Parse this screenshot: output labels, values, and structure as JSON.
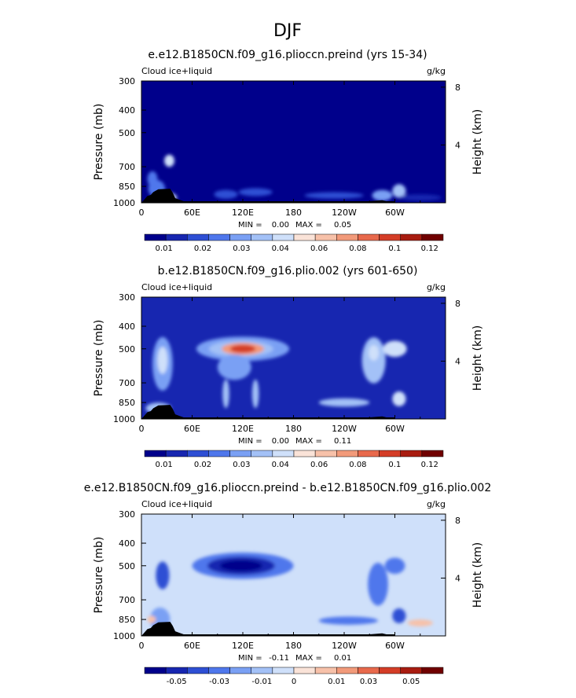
{
  "figure": {
    "title": "DJF"
  },
  "colors": {
    "levels": [
      "#00008b",
      "#1726b0",
      "#2e4fd4",
      "#4f77ec",
      "#7aa0f4",
      "#a3c1f7",
      "#cfe0fa",
      "#fae3d8",
      "#f7c1a9",
      "#f29a7a",
      "#e8694c",
      "#d43d27",
      "#a81c10",
      "#700000"
    ],
    "land": "#000000"
  },
  "chart_data": [
    {
      "type": "heatmap",
      "title": "e.e12.B1850CN.f09_g16.plioccn.preind (yrs 15-34)",
      "left_label": "Cloud ice+liquid",
      "right_label": "g/kg",
      "ylabel": "Pressure (mb)",
      "y2label": "Height (km)",
      "x_ticks": [
        "0",
        "60E",
        "120E",
        "180",
        "120W",
        "60W"
      ],
      "y_ticks": [
        "300",
        "400",
        "500",
        "700",
        "850",
        "1000"
      ],
      "y2_ticks": [
        "8",
        "4"
      ],
      "stats": {
        "min_label": "MIN =",
        "min": "0.00",
        "max_label": "MAX =",
        "max": "0.05"
      },
      "colorbar": [
        "0.01",
        "0.02",
        "0.03",
        "0.04",
        "0.06",
        "0.08",
        "0.1",
        "0.12"
      ],
      "field": {
        "background": 0,
        "blobs": [
          {
            "lon": 28,
            "p": 950,
            "w": 14,
            "h": 100,
            "v": 6
          },
          {
            "lon": 33,
            "p": 660,
            "w": 6,
            "h": 80,
            "v": 6
          },
          {
            "lon": 18,
            "p": 870,
            "w": 10,
            "h": 150,
            "v": 3
          },
          {
            "lon": 13,
            "p": 790,
            "w": 6,
            "h": 120,
            "v": 3
          },
          {
            "lon": 100,
            "p": 920,
            "w": 14,
            "h": 80,
            "v": 2
          },
          {
            "lon": 135,
            "p": 900,
            "w": 20,
            "h": 70,
            "v": 2
          },
          {
            "lon": 228,
            "p": 930,
            "w": 35,
            "h": 60,
            "v": 2
          },
          {
            "lon": 285,
            "p": 930,
            "w": 12,
            "h": 100,
            "v": 4
          },
          {
            "lon": 305,
            "p": 890,
            "w": 8,
            "h": 120,
            "v": 5
          },
          {
            "lon": 330,
            "p": 950,
            "w": 25,
            "h": 60,
            "v": 1
          }
        ]
      },
      "land": [
        [
          7,
          935
        ],
        [
          11,
          925
        ],
        [
          14,
          900
        ],
        [
          20,
          875
        ],
        [
          34,
          870
        ],
        [
          37,
          905
        ],
        [
          40,
          955
        ],
        [
          45,
          970
        ],
        [
          50,
          985
        ],
        [
          210,
          985
        ],
        [
          240,
          985
        ],
        [
          270,
          985
        ],
        [
          285,
          975
        ],
        [
          290,
          985
        ],
        [
          300,
          985
        ]
      ]
    },
    {
      "type": "heatmap",
      "title": "b.e12.B1850CN.f09_g16.plio.002 (yrs 601-650)",
      "left_label": "Cloud ice+liquid",
      "right_label": "g/kg",
      "ylabel": "Pressure (mb)",
      "y2label": "Height (km)",
      "x_ticks": [
        "0",
        "60E",
        "120E",
        "180",
        "120W",
        "60W"
      ],
      "y_ticks": [
        "300",
        "400",
        "500",
        "700",
        "850",
        "1000"
      ],
      "y2_ticks": [
        "8",
        "4"
      ],
      "stats": {
        "min_label": "MIN =",
        "min": "0.00",
        "max_label": "MAX =",
        "max": "0.11"
      },
      "colorbar": [
        "0.01",
        "0.02",
        "0.03",
        "0.04",
        "0.06",
        "0.08",
        "0.1",
        "0.12"
      ],
      "field": {
        "background": 1,
        "blobs": [
          {
            "lon": 120,
            "p": 500,
            "w": 55,
            "h": 120,
            "v": 4
          },
          {
            "lon": 118,
            "p": 500,
            "w": 38,
            "h": 80,
            "v": 5
          },
          {
            "lon": 120,
            "p": 500,
            "w": 25,
            "h": 60,
            "v": 9
          },
          {
            "lon": 120,
            "p": 500,
            "w": 15,
            "h": 40,
            "v": 11
          },
          {
            "lon": 110,
            "p": 600,
            "w": 20,
            "h": 150,
            "v": 4
          },
          {
            "lon": 25,
            "p": 580,
            "w": 12,
            "h": 300,
            "v": 4
          },
          {
            "lon": 25,
            "p": 560,
            "w": 6,
            "h": 150,
            "v": 6
          },
          {
            "lon": 20,
            "p": 900,
            "w": 15,
            "h": 100,
            "v": 5
          },
          {
            "lon": 100,
            "p": 780,
            "w": 4,
            "h": 220,
            "v": 5
          },
          {
            "lon": 135,
            "p": 780,
            "w": 4,
            "h": 220,
            "v": 5
          },
          {
            "lon": 240,
            "p": 850,
            "w": 18,
            "h": 40,
            "v": 8
          },
          {
            "lon": 240,
            "p": 850,
            "w": 30,
            "h": 70,
            "v": 5
          },
          {
            "lon": 275,
            "p": 560,
            "w": 14,
            "h": 250,
            "v": 5
          },
          {
            "lon": 275,
            "p": 520,
            "w": 6,
            "h": 80,
            "v": 6
          },
          {
            "lon": 300,
            "p": 500,
            "w": 14,
            "h": 80,
            "v": 6
          },
          {
            "lon": 305,
            "p": 820,
            "w": 8,
            "h": 120,
            "v": 6
          }
        ]
      },
      "land": [
        [
          7,
          935
        ],
        [
          11,
          925
        ],
        [
          14,
          900
        ],
        [
          20,
          875
        ],
        [
          34,
          870
        ],
        [
          37,
          905
        ],
        [
          40,
          955
        ],
        [
          45,
          970
        ],
        [
          50,
          985
        ],
        [
          210,
          985
        ],
        [
          240,
          985
        ],
        [
          270,
          985
        ],
        [
          285,
          975
        ],
        [
          290,
          985
        ],
        [
          300,
          985
        ]
      ]
    },
    {
      "type": "heatmap",
      "title": "e.e12.B1850CN.f09_g16.plioccn.preind - b.e12.B1850CN.f09_g16.plio.002",
      "left_label": "Cloud ice+liquid",
      "right_label": "g/kg",
      "ylabel": "Pressure (mb)",
      "y2label": "Height (km)",
      "x_ticks": [
        "0",
        "60E",
        "120E",
        "180",
        "120W",
        "60W"
      ],
      "y_ticks": [
        "300",
        "400",
        "500",
        "700",
        "850",
        "1000"
      ],
      "y2_ticks": [
        "8",
        "4"
      ],
      "stats": {
        "min_label": "MIN =",
        "min": "-0.11",
        "max_label": "MAX =",
        "max": "0.01"
      },
      "colorbar": [
        "-0.05",
        "-0.03",
        "-0.01",
        "0",
        "0.01",
        "0.03",
        "0.05"
      ],
      "field": {
        "background": 6,
        "blobs": [
          {
            "lon": 120,
            "p": 500,
            "w": 60,
            "h": 130,
            "v": 3
          },
          {
            "lon": 118,
            "p": 500,
            "w": 40,
            "h": 90,
            "v": 1
          },
          {
            "lon": 118,
            "p": 500,
            "w": 25,
            "h": 55,
            "v": 0
          },
          {
            "lon": 25,
            "p": 550,
            "w": 8,
            "h": 150,
            "v": 2
          },
          {
            "lon": 22,
            "p": 850,
            "w": 12,
            "h": 200,
            "v": 4
          },
          {
            "lon": 240,
            "p": 850,
            "w": 20,
            "h": 40,
            "v": 1
          },
          {
            "lon": 245,
            "p": 860,
            "w": 35,
            "h": 70,
            "v": 3
          },
          {
            "lon": 280,
            "p": 600,
            "w": 12,
            "h": 250,
            "v": 3
          },
          {
            "lon": 300,
            "p": 500,
            "w": 12,
            "h": 80,
            "v": 3
          },
          {
            "lon": 305,
            "p": 820,
            "w": 8,
            "h": 120,
            "v": 2
          },
          {
            "lon": 12,
            "p": 850,
            "w": 5,
            "h": 60,
            "v": 8
          },
          {
            "lon": 330,
            "p": 880,
            "w": 15,
            "h": 60,
            "v": 8
          }
        ]
      },
      "land": [
        [
          7,
          935
        ],
        [
          11,
          925
        ],
        [
          14,
          900
        ],
        [
          20,
          875
        ],
        [
          34,
          870
        ],
        [
          37,
          905
        ],
        [
          40,
          955
        ],
        [
          45,
          970
        ],
        [
          50,
          985
        ],
        [
          210,
          985
        ],
        [
          240,
          985
        ],
        [
          270,
          985
        ],
        [
          285,
          975
        ],
        [
          290,
          985
        ],
        [
          300,
          985
        ]
      ]
    }
  ]
}
